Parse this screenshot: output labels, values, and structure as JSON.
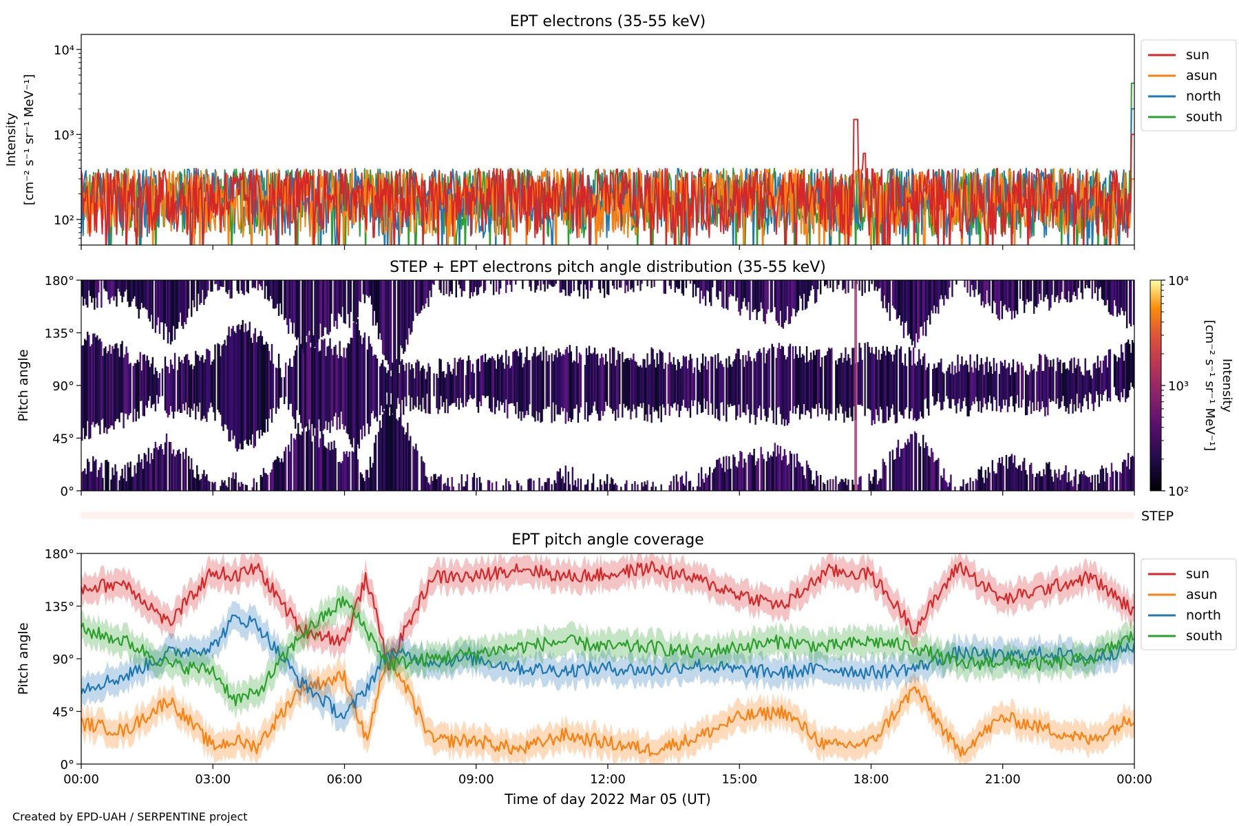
{
  "figure": {
    "credit": "Created by EPD-UAH / SERPENTINE project",
    "xlabel": "Time of day 2022 Mar 05 (UT)",
    "x_ticks": [
      "00:00",
      "03:00",
      "06:00",
      "09:00",
      "12:00",
      "15:00",
      "18:00",
      "21:00",
      "00:00"
    ]
  },
  "chart_data": [
    {
      "type": "line",
      "title": "EPT electrons (35-55 keV)",
      "ylabel_line1": "Intensity",
      "ylabel_line2": "[cm⁻² s⁻¹ sr⁻¹ MeV⁻¹]",
      "yscale": "log",
      "ylim": [
        50,
        15000
      ],
      "y_ticks": [
        "10²",
        "10³",
        "10⁴"
      ],
      "x_range_hours": [
        0,
        24
      ],
      "legend_position": "outside-right",
      "typical_range": [
        60,
        400
      ],
      "series": [
        {
          "name": "sun",
          "color": "#d62728",
          "notes": "spike ~1500 at 17:40; rise to ~1000 at 23:55"
        },
        {
          "name": "asun",
          "color": "#ff7f0e"
        },
        {
          "name": "north",
          "color": "#1f77b4",
          "notes": "end value ~2000"
        },
        {
          "name": "south",
          "color": "#2ca02c",
          "notes": "end value ~4000"
        }
      ]
    },
    {
      "type": "heatmap",
      "title": "STEP + EPT electrons pitch angle distribution (35-55 keV)",
      "ylabel": "Pitch angle",
      "ylim": [
        0,
        180
      ],
      "y_ticks": [
        "0°",
        "45°",
        "90°",
        "135°",
        "180°"
      ],
      "colorbar": {
        "scale": "log",
        "range": [
          100,
          10000
        ],
        "ticks": [
          "10²",
          "10³",
          "10⁴"
        ],
        "label_line1": "Intensity",
        "label_line2": "[cm⁻² s⁻¹ sr⁻¹ MeV⁻¹]",
        "colormap": "inferno"
      },
      "step_strip_label": "STEP"
    },
    {
      "type": "line",
      "title": "EPT pitch angle coverage",
      "ylabel": "Pitch angle",
      "ylim": [
        0,
        180
      ],
      "y_ticks": [
        "0°",
        "45°",
        "90°",
        "135°",
        "180°"
      ],
      "legend_position": "outside-right",
      "shaded_band_halfwidth_deg": 12,
      "hours": [
        0,
        1,
        2,
        3,
        3.5,
        4,
        5,
        6,
        6.5,
        7,
        8,
        9,
        10,
        11,
        12,
        13,
        14,
        15,
        16,
        17,
        18,
        19,
        20,
        21,
        22,
        23,
        24
      ],
      "series": [
        {
          "name": "sun",
          "color": "#d62728",
          "values": [
            150,
            155,
            120,
            165,
            160,
            168,
            115,
            105,
            160,
            85,
            160,
            160,
            168,
            160,
            162,
            168,
            158,
            145,
            135,
            165,
            162,
            115,
            170,
            140,
            150,
            160,
            130
          ]
        },
        {
          "name": "asun",
          "color": "#ff7f0e",
          "values": [
            35,
            28,
            55,
            15,
            20,
            15,
            65,
            75,
            20,
            95,
            20,
            20,
            12,
            25,
            18,
            12,
            22,
            40,
            45,
            15,
            18,
            65,
            10,
            40,
            30,
            20,
            40
          ]
        },
        {
          "name": "north",
          "color": "#1f77b4",
          "values": [
            65,
            75,
            95,
            100,
            125,
            120,
            70,
            40,
            65,
            95,
            88,
            90,
            82,
            80,
            82,
            80,
            85,
            80,
            78,
            82,
            78,
            82,
            95,
            92,
            95,
            90,
            100
          ]
        },
        {
          "name": "south",
          "color": "#2ca02c",
          "values": [
            115,
            105,
            85,
            80,
            55,
            60,
            110,
            140,
            115,
            85,
            90,
            95,
            100,
            105,
            100,
            100,
            95,
            100,
            105,
            100,
            105,
            100,
            85,
            88,
            85,
            90,
            110
          ]
        }
      ]
    }
  ]
}
